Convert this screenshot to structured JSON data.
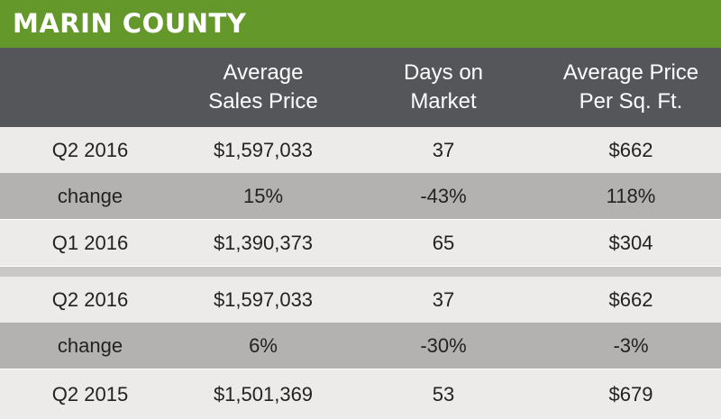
{
  "title": "MARIN COUNTY",
  "columns": [
    {
      "line1": "",
      "line2": ""
    },
    {
      "line1": "Average",
      "line2": "Sales Price"
    },
    {
      "line1": "Days on",
      "line2": "Market"
    },
    {
      "line1": "Average Price",
      "line2": "Per Sq. Ft."
    }
  ],
  "rows": [
    {
      "label": "Q2 2016",
      "price": "$1,597,033",
      "days": "37",
      "ppsf": "$662"
    },
    {
      "label": "change",
      "price": "15%",
      "days": "-43%",
      "ppsf": "118%"
    },
    {
      "label": "Q1 2016",
      "price": "$1,390,373",
      "days": "65",
      "ppsf": "$304"
    },
    {
      "label": "Q2 2016",
      "price": "$1,597,033",
      "days": "37",
      "ppsf": "$662"
    },
    {
      "label": "change",
      "price": "6%",
      "days": "-30%",
      "ppsf": "-3%"
    },
    {
      "label": "Q2 2015",
      "price": "$1,501,369",
      "days": "53",
      "ppsf": "$679"
    }
  ],
  "colors": {
    "title_bg": "#65982a",
    "header_bg": "#54565a",
    "row_light": "#ecebe9",
    "row_dark": "#b3b2b0",
    "separator": "#c9c8c6"
  },
  "chart_data": {
    "type": "table",
    "title": "MARIN COUNTY",
    "headers": [
      "",
      "Average Sales Price",
      "Days on Market",
      "Average Price Per Sq. Ft."
    ],
    "groups": [
      {
        "rows": [
          [
            "Q2 2016",
            "$1,597,033",
            "37",
            "$662"
          ],
          [
            "change",
            "15%",
            "-43%",
            "118%"
          ],
          [
            "Q1 2016",
            "$1,390,373",
            "65",
            "$304"
          ]
        ]
      },
      {
        "rows": [
          [
            "Q2 2016",
            "$1,597,033",
            "37",
            "$662"
          ],
          [
            "change",
            "6%",
            "-30%",
            "-3%"
          ],
          [
            "Q2 2015",
            "$1,501,369",
            "53",
            "$679"
          ]
        ]
      }
    ]
  }
}
